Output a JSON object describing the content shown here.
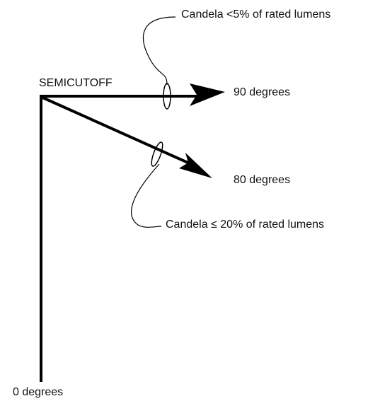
{
  "title": "SEMICUTOFF",
  "labels": {
    "top_note": "Candela <5% of rated lumens",
    "deg90": "90 degrees",
    "deg80": "80 degrees",
    "bottom_note": "Candela ≤ 20% of rated lumens",
    "deg0": "0 degrees"
  }
}
